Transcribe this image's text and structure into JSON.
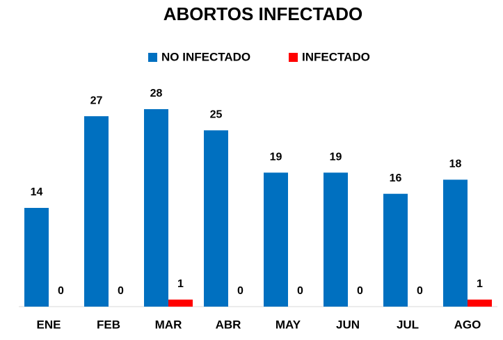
{
  "chart_data": {
    "type": "bar",
    "title": "ABORTOS INFECTADO",
    "categories": [
      "ENE",
      "FEB",
      "MAR",
      "ABR",
      "MAY",
      "JUN",
      "JUL",
      "AGO"
    ],
    "series": [
      {
        "name": "NO INFECTADO",
        "color": "#0070c0",
        "values": [
          14,
          27,
          28,
          25,
          19,
          19,
          16,
          18
        ]
      },
      {
        "name": "INFECTADO",
        "color": "#ff0000",
        "values": [
          0,
          0,
          1,
          0,
          0,
          0,
          0,
          1
        ]
      }
    ],
    "legend": "top",
    "grid": false
  }
}
